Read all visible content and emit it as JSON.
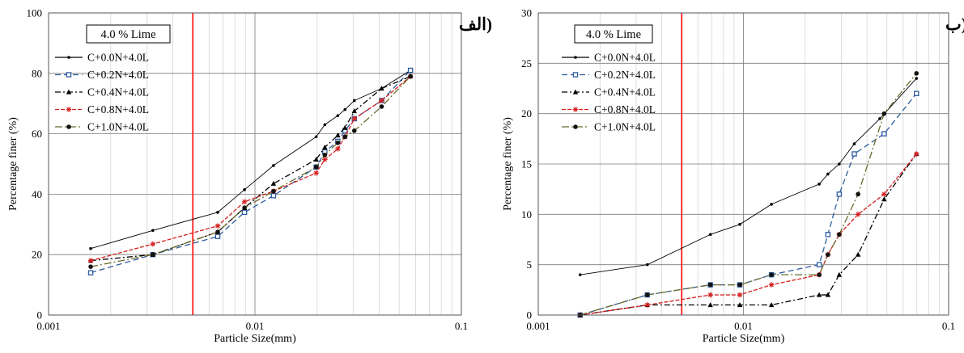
{
  "chart_data": [
    {
      "type": "line",
      "panel_title": "(الف",
      "legend_title": "4.0 % Lime",
      "xlabel": "Particle Size(mm)",
      "ylabel": "Percentage finer (%)",
      "xscale": "log",
      "xlim": [
        0.001,
        0.1
      ],
      "ylim": [
        0,
        100
      ],
      "xticks": [
        "0.001",
        "0.01",
        "0.1"
      ],
      "yticks": [
        "0",
        "20",
        "40",
        "60",
        "80",
        "100"
      ],
      "grid": true,
      "legend_position": "top-left",
      "reference_line_x": 0.005,
      "series": [
        {
          "name": "C+0.0N+4.0L",
          "color": "#000000",
          "dash": "",
          "marker": "dot",
          "x": [
            0.0016,
            0.0032,
            0.0066,
            0.0089,
            0.0123,
            0.0198,
            0.0218,
            0.0252,
            0.0273,
            0.0303,
            0.0411,
            0.0567
          ],
          "y": [
            22,
            28,
            34,
            41.5,
            49.5,
            59,
            63,
            66,
            68,
            71,
            75,
            81
          ]
        },
        {
          "name": "C+0.2N+4.0L",
          "color": "#2e5c9e",
          "dash": "7,4",
          "marker": "square",
          "x": [
            0.0016,
            0.0032,
            0.0066,
            0.0089,
            0.0123,
            0.0198,
            0.0218,
            0.0252,
            0.0273,
            0.0303,
            0.0411,
            0.0567
          ],
          "y": [
            14,
            20,
            26,
            34,
            39.5,
            49,
            54,
            57.5,
            61,
            65,
            71,
            81
          ]
        },
        {
          "name": "C+0.4N+4.0L",
          "color": "#000000",
          "dash": "7,3,2,3",
          "marker": "triangle",
          "x": [
            0.0016,
            0.0032,
            0.0066,
            0.0089,
            0.0123,
            0.0198,
            0.0218,
            0.0252,
            0.0273,
            0.0303,
            0.0411,
            0.0567
          ],
          "y": [
            18,
            20,
            27.5,
            35.5,
            43.5,
            51.5,
            55.5,
            59.5,
            62,
            67.5,
            75,
            79
          ]
        },
        {
          "name": "C+0.8N+4.0L",
          "color": "#d42020",
          "dash": "5,2",
          "marker": "star",
          "x": [
            0.0016,
            0.0032,
            0.0066,
            0.0089,
            0.0123,
            0.0198,
            0.0218,
            0.0252,
            0.0273,
            0.0303,
            0.0411,
            0.0567
          ],
          "y": [
            18,
            23.5,
            29.5,
            37.5,
            41,
            47,
            51.5,
            55,
            59,
            65,
            71,
            79
          ]
        },
        {
          "name": "C+1.0N+4.0L",
          "color": "#6b6b2e",
          "dash": "9,3,2,3",
          "marker": "circle",
          "x": [
            0.0016,
            0.0032,
            0.0066,
            0.0089,
            0.0123,
            0.0198,
            0.0218,
            0.0252,
            0.0273,
            0.0303,
            0.0411,
            0.0567
          ],
          "y": [
            16,
            20,
            27.5,
            35.5,
            41,
            49,
            53,
            57,
            59,
            61,
            69,
            79
          ]
        }
      ]
    },
    {
      "type": "line",
      "panel_title": "(ب",
      "legend_title": "4.0 % Lime",
      "xlabel": "Particle Size(mm)",
      "ylabel": "Percentage finer (%)",
      "xscale": "log",
      "xlim": [
        0.001,
        0.1
      ],
      "ylim": [
        0,
        30
      ],
      "xticks": [
        "0.001",
        "0.01",
        "0.1"
      ],
      "yticks": [
        "0",
        "5",
        "10",
        "15",
        "20",
        "25",
        "30"
      ],
      "grid": true,
      "legend_position": "top-left",
      "reference_line_x": 0.005,
      "series": [
        {
          "name": "C+0.0N+4.0L",
          "color": "#000000",
          "dash": "",
          "marker": "dot",
          "x": [
            0.0016,
            0.0034,
            0.0069,
            0.0096,
            0.0137,
            0.0234,
            0.0258,
            0.0293,
            0.0347,
            0.0462,
            0.0697
          ],
          "y": [
            4,
            5,
            8,
            9,
            11,
            13,
            14,
            15,
            17,
            19.5,
            23.5
          ]
        },
        {
          "name": "C+0.2N+4.0L",
          "color": "#2e5c9e",
          "dash": "7,4",
          "marker": "square",
          "x": [
            0.0016,
            0.0034,
            0.0069,
            0.0096,
            0.0137,
            0.0234,
            0.0258,
            0.0293,
            0.0347,
            0.0485,
            0.0697
          ],
          "y": [
            0,
            2,
            3,
            3,
            4,
            5,
            8,
            12,
            16,
            18,
            22
          ]
        },
        {
          "name": "C+0.4N+4.0L",
          "color": "#000000",
          "dash": "7,3,2,3",
          "marker": "triangle",
          "x": [
            0.0016,
            0.0034,
            0.0069,
            0.0096,
            0.0137,
            0.0234,
            0.0258,
            0.0293,
            0.0362,
            0.0485,
            0.0697
          ],
          "y": [
            0,
            1,
            1,
            1,
            1,
            2,
            2,
            4,
            6,
            11.5,
            16
          ]
        },
        {
          "name": "C+0.8N+4.0L",
          "color": "#d42020",
          "dash": "5,2",
          "marker": "star",
          "x": [
            0.0016,
            0.0034,
            0.0069,
            0.0096,
            0.0137,
            0.0234,
            0.0258,
            0.0293,
            0.0362,
            0.0485,
            0.0697
          ],
          "y": [
            0,
            1,
            2,
            2,
            3,
            4,
            6,
            8,
            10,
            12,
            16
          ]
        },
        {
          "name": "C+1.0N+4.0L",
          "color": "#6b6b2e",
          "dash": "9,3,2,3",
          "marker": "circle",
          "x": [
            0.0016,
            0.0034,
            0.0069,
            0.0096,
            0.0137,
            0.0234,
            0.0258,
            0.0293,
            0.0362,
            0.0485,
            0.0697
          ],
          "y": [
            0,
            2,
            3,
            3,
            4,
            4,
            6,
            8,
            12,
            20,
            24
          ]
        }
      ]
    }
  ]
}
